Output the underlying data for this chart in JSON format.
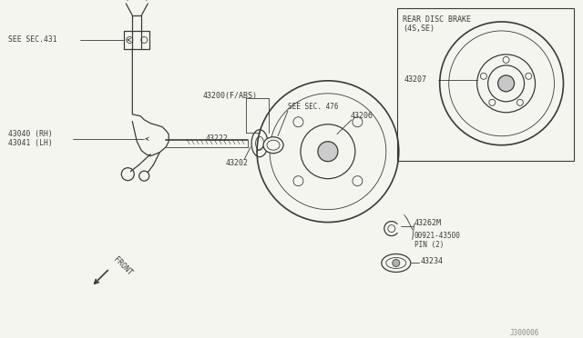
{
  "bg_color": "#f5f5f0",
  "line_color": "#3a3a3a",
  "text_color": "#3a3a3a",
  "fig_width": 6.4,
  "fig_height": 3.72,
  "dpi": 100,
  "watermark": "J300006",
  "labels": {
    "see_sec431": "SEE SEC.431",
    "part43040": "43040 (RH)",
    "part43041": "43041 (LH)",
    "part43200": "43200(F/ABS)",
    "see_sec476": "SEE SEC. 476",
    "part43222": "43222",
    "part43202": "43202",
    "part43206": "43206",
    "part43262m": "43262M",
    "part00921": "00921-43500",
    "pin2": "PIN (2)",
    "part43234": "43234",
    "part43207": "43207",
    "rear_disc": "REAR DISC BRAKE",
    "rear_disc2": "(4S,SE)",
    "front_label": "FRONT"
  }
}
